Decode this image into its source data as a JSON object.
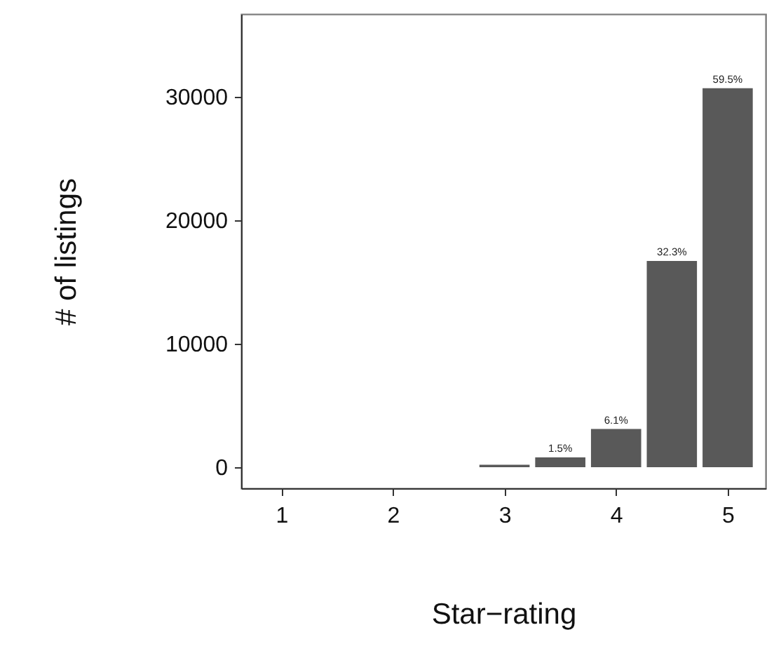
{
  "chart_data": {
    "type": "bar",
    "xlabel": "Star−rating",
    "ylabel": "# of listings",
    "x": [
      1,
      1.5,
      2,
      2.5,
      3,
      3.5,
      4,
      4.5,
      5
    ],
    "values": [
      0,
      0,
      0,
      0,
      200,
      800,
      3100,
      16700,
      30700
    ],
    "annotations": [
      {
        "text": "1.5%",
        "x": 3.5,
        "y": 800
      },
      {
        "text": "6.1%",
        "x": 4,
        "y": 3100
      },
      {
        "text": "32.3%",
        "x": 4.5,
        "y": 16700
      },
      {
        "text": "59.5%",
        "x": 5,
        "y": 30700
      }
    ],
    "color": "#595959",
    "xlim": [
      0.64,
      5.34
    ],
    "xticks": [
      1,
      2,
      3,
      4,
      5
    ],
    "ylim": [
      -1700,
      36700
    ],
    "yticks": [
      0,
      10000,
      20000,
      30000
    ],
    "grid": false
  }
}
